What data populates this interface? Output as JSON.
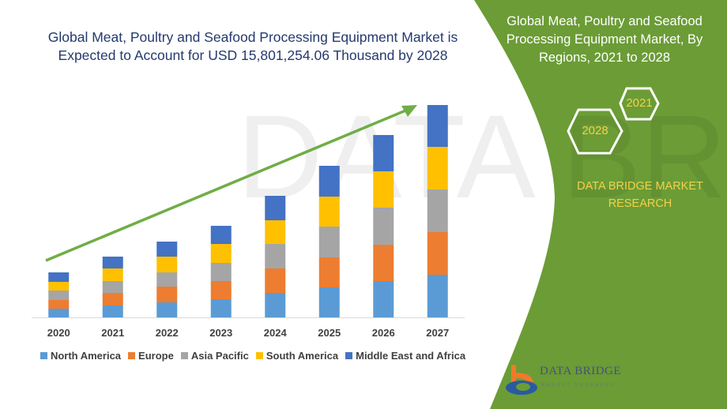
{
  "chart_data": {
    "type": "bar",
    "stacked": true,
    "title": "Global Meat, Poultry and Seafood Processing Equipment Market is Expected to Account for USD 15,801,254.06 Thousand by 2028",
    "xlabel": "",
    "ylabel": "",
    "ylim": [
      0,
      270
    ],
    "grid": false,
    "legend_position": "bottom",
    "categories": [
      "2020",
      "2021",
      "2022",
      "2023",
      "2024",
      "2025",
      "2026",
      "2027"
    ],
    "series": [
      {
        "name": "North America",
        "color": "#5b9bd5",
        "values": [
          11,
          15,
          19,
          23,
          31,
          38,
          46,
          54
        ]
      },
      {
        "name": "Europe",
        "color": "#ed7d31",
        "values": [
          11,
          16,
          20,
          23,
          31,
          38,
          46,
          54
        ]
      },
      {
        "name": "Asia Pacific",
        "color": "#a5a5a5",
        "values": [
          12,
          15,
          18,
          23,
          31,
          39,
          47,
          54
        ]
      },
      {
        "name": "South America",
        "color": "#ffc000",
        "values": [
          11,
          16,
          20,
          24,
          30,
          38,
          46,
          54
        ]
      },
      {
        "name": "Middle East and Africa",
        "color": "#4472c4",
        "values": [
          12,
          15,
          19,
          23,
          31,
          39,
          46,
          53
        ]
      }
    ],
    "annotations": [
      "upward trend arrow"
    ]
  },
  "side_panel": {
    "title": "Global Meat, Poultry and Seafood Processing Equipment Market, By Regions, 2021 to 2028",
    "hex_labels": [
      "2021",
      "2028"
    ],
    "brand": "DATA BRIDGE MARKET RESEARCH",
    "logo_text": "DATA BRIDGE",
    "logo_subtext": "MARKET RESEARCH",
    "panel_color": "#6b9c36",
    "accent_color": "#f2d14a"
  }
}
